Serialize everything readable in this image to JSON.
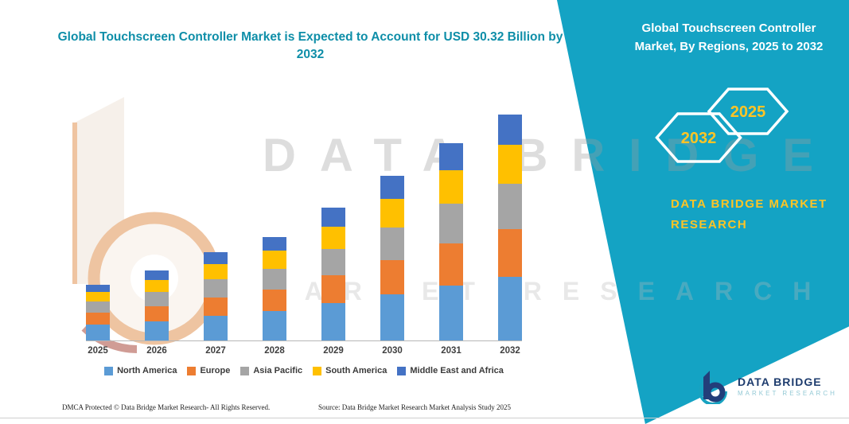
{
  "header": {
    "title": "Global Touchscreen Controller Market is Expected to Account for USD 30.32 Billion by 2032"
  },
  "side_panel": {
    "title": "Global Touchscreen Controller Market, By Regions, 2025 to 2032",
    "hex_left": "2032",
    "hex_right": "2025",
    "brand": "DATA BRIDGE MARKET RESEARCH",
    "bg_color": "#14a3c4",
    "accent_yellow": "#ffc425"
  },
  "watermark": {
    "line1": "DATA BRIDGE",
    "line2": "MARKET RESEARCH"
  },
  "chart_data": {
    "type": "bar",
    "stacked": true,
    "title": "Global Touchscreen Controller Market is Expected to Account for USD 30.32 Billion by 2032",
    "categories": [
      "2025",
      "2026",
      "2027",
      "2028",
      "2029",
      "2030",
      "2031",
      "2032"
    ],
    "series": [
      {
        "name": "North America",
        "color": "#5B9BD5",
        "values": [
          2.1,
          2.6,
          3.3,
          3.9,
          5.0,
          6.2,
          7.4,
          8.5
        ]
      },
      {
        "name": "Europe",
        "color": "#ED7D31",
        "values": [
          1.6,
          2.0,
          2.5,
          2.9,
          3.7,
          4.6,
          5.6,
          6.4
        ]
      },
      {
        "name": "Asia Pacific",
        "color": "#A5A5A5",
        "values": [
          1.5,
          1.9,
          2.4,
          2.8,
          3.6,
          4.4,
          5.3,
          6.1
        ]
      },
      {
        "name": "South America",
        "color": "#FFC000",
        "values": [
          1.3,
          1.6,
          2.0,
          2.4,
          3.0,
          3.8,
          4.5,
          5.2
        ]
      },
      {
        "name": "Middle East and Africa",
        "color": "#4472C4",
        "values": [
          1.0,
          1.3,
          1.6,
          1.9,
          2.5,
          3.1,
          3.7,
          4.1
        ]
      }
    ],
    "totals": [
      7.5,
      9.4,
      11.8,
      13.9,
      17.8,
      22.1,
      26.5,
      30.32
    ],
    "xlabel": "",
    "ylabel": "",
    "ylim": [
      0,
      32
    ],
    "grid": false,
    "legend_position": "bottom"
  },
  "footer": {
    "dmca": "DMCA Protected © Data Bridge Market Research-  All Rights Reserved.",
    "source": "Source: Data Bridge Market Research  Market Analysis Study 2025"
  },
  "logo": {
    "name": "DATA BRIDGE",
    "subtitle": "MARKET RESEARCH"
  }
}
